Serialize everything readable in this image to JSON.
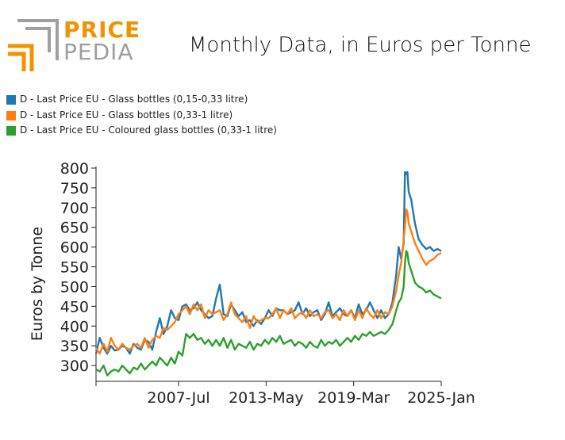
{
  "logo": {
    "word_top": "PRICE",
    "word_bottom": "PEDIA",
    "accent_color": "#f39200",
    "mark_color": "#a0a0a0"
  },
  "chart_data": {
    "type": "line",
    "title": "Monthly Data, in Euros per Tonne",
    "ylabel": "Euros by Tonne",
    "xlabel": "",
    "x_axis_type": "date",
    "x_range": [
      "2002-01",
      "2025-01"
    ],
    "x_ticks": [
      "2007-Jul",
      "2013-May",
      "2019-Mar",
      "2025-Jan"
    ],
    "ylim": [
      260,
      800
    ],
    "y_ticks": [
      300,
      350,
      400,
      450,
      500,
      550,
      600,
      650,
      700,
      750,
      800
    ],
    "grid": false,
    "legend_position": "top-left",
    "series": [
      {
        "name": "D - Last Price EU - Glass bottles (0,15-0,33 litre)",
        "color": "#1f77b4",
        "points": [
          [
            "2002-01",
            330
          ],
          [
            "2002-04",
            370
          ],
          [
            "2002-07",
            345
          ],
          [
            "2002-10",
            330
          ],
          [
            "2003-01",
            350
          ],
          [
            "2003-04",
            338
          ],
          [
            "2003-07",
            340
          ],
          [
            "2003-10",
            350
          ],
          [
            "2004-01",
            345
          ],
          [
            "2004-04",
            330
          ],
          [
            "2004-07",
            355
          ],
          [
            "2004-10",
            345
          ],
          [
            "2005-01",
            340
          ],
          [
            "2005-04",
            365
          ],
          [
            "2005-07",
            360
          ],
          [
            "2005-10",
            340
          ],
          [
            "2006-01",
            385
          ],
          [
            "2006-04",
            420
          ],
          [
            "2006-07",
            380
          ],
          [
            "2006-10",
            400
          ],
          [
            "2007-01",
            440
          ],
          [
            "2007-04",
            420
          ],
          [
            "2007-07",
            415
          ],
          [
            "2007-10",
            450
          ],
          [
            "2008-01",
            455
          ],
          [
            "2008-04",
            440
          ],
          [
            "2008-07",
            445
          ],
          [
            "2008-10",
            460
          ],
          [
            "2009-01",
            440
          ],
          [
            "2009-04",
            430
          ],
          [
            "2009-07",
            420
          ],
          [
            "2009-10",
            425
          ],
          [
            "2010-01",
            470
          ],
          [
            "2010-04",
            505
          ],
          [
            "2010-07",
            430
          ],
          [
            "2010-10",
            425
          ],
          [
            "2011-01",
            455
          ],
          [
            "2011-04",
            440
          ],
          [
            "2011-07",
            425
          ],
          [
            "2011-10",
            435
          ],
          [
            "2012-01",
            410
          ],
          [
            "2012-04",
            415
          ],
          [
            "2012-07",
            400
          ],
          [
            "2012-10",
            415
          ],
          [
            "2013-01",
            405
          ],
          [
            "2013-04",
            420
          ],
          [
            "2013-07",
            440
          ],
          [
            "2013-10",
            425
          ],
          [
            "2014-01",
            445
          ],
          [
            "2014-04",
            440
          ],
          [
            "2014-07",
            440
          ],
          [
            "2014-10",
            430
          ],
          [
            "2015-01",
            435
          ],
          [
            "2015-04",
            440
          ],
          [
            "2015-07",
            460
          ],
          [
            "2015-10",
            430
          ],
          [
            "2016-01",
            445
          ],
          [
            "2016-04",
            425
          ],
          [
            "2016-07",
            435
          ],
          [
            "2016-10",
            440
          ],
          [
            "2017-01",
            415
          ],
          [
            "2017-04",
            430
          ],
          [
            "2017-07",
            460
          ],
          [
            "2017-10",
            425
          ],
          [
            "2018-01",
            435
          ],
          [
            "2018-04",
            445
          ],
          [
            "2018-07",
            430
          ],
          [
            "2018-10",
            425
          ],
          [
            "2019-01",
            440
          ],
          [
            "2019-04",
            420
          ],
          [
            "2019-07",
            455
          ],
          [
            "2019-10",
            430
          ],
          [
            "2020-01",
            440
          ],
          [
            "2020-04",
            460
          ],
          [
            "2020-07",
            440
          ],
          [
            "2020-10",
            420
          ],
          [
            "2021-01",
            440
          ],
          [
            "2021-04",
            420
          ],
          [
            "2021-07",
            430
          ],
          [
            "2021-10",
            460
          ],
          [
            "2022-01",
            530
          ],
          [
            "2022-03",
            600
          ],
          [
            "2022-05",
            570
          ],
          [
            "2022-07",
            610
          ],
          [
            "2022-08",
            790
          ],
          [
            "2022-09",
            785
          ],
          [
            "2022-10",
            790
          ],
          [
            "2022-11",
            740
          ],
          [
            "2023-01",
            720
          ],
          [
            "2023-04",
            660
          ],
          [
            "2023-07",
            620
          ],
          [
            "2023-10",
            605
          ],
          [
            "2024-01",
            595
          ],
          [
            "2024-04",
            600
          ],
          [
            "2024-07",
            590
          ],
          [
            "2024-10",
            595
          ],
          [
            "2025-01",
            590
          ]
        ]
      },
      {
        "name": "D - Last Price EU - Glass bottles (0,33-1 litre)",
        "color": "#ff7f0e",
        "points": [
          [
            "2002-01",
            345
          ],
          [
            "2002-04",
            330
          ],
          [
            "2002-07",
            355
          ],
          [
            "2002-10",
            335
          ],
          [
            "2003-01",
            370
          ],
          [
            "2003-04",
            350
          ],
          [
            "2003-07",
            340
          ],
          [
            "2003-10",
            355
          ],
          [
            "2004-01",
            345
          ],
          [
            "2004-04",
            340
          ],
          [
            "2004-07",
            350
          ],
          [
            "2004-10",
            355
          ],
          [
            "2005-01",
            345
          ],
          [
            "2005-04",
            370
          ],
          [
            "2005-07",
            345
          ],
          [
            "2005-10",
            365
          ],
          [
            "2006-01",
            375
          ],
          [
            "2006-04",
            370
          ],
          [
            "2006-07",
            395
          ],
          [
            "2006-10",
            390
          ],
          [
            "2007-01",
            400
          ],
          [
            "2007-04",
            410
          ],
          [
            "2007-07",
            430
          ],
          [
            "2007-10",
            440
          ],
          [
            "2008-01",
            450
          ],
          [
            "2008-04",
            430
          ],
          [
            "2008-07",
            455
          ],
          [
            "2008-10",
            440
          ],
          [
            "2009-01",
            455
          ],
          [
            "2009-04",
            420
          ],
          [
            "2009-07",
            440
          ],
          [
            "2009-10",
            430
          ],
          [
            "2010-01",
            435
          ],
          [
            "2010-04",
            440
          ],
          [
            "2010-07",
            415
          ],
          [
            "2010-10",
            430
          ],
          [
            "2011-01",
            460
          ],
          [
            "2011-04",
            430
          ],
          [
            "2011-07",
            420
          ],
          [
            "2011-10",
            410
          ],
          [
            "2012-01",
            425
          ],
          [
            "2012-04",
            395
          ],
          [
            "2012-07",
            425
          ],
          [
            "2012-10",
            410
          ],
          [
            "2013-01",
            415
          ],
          [
            "2013-04",
            420
          ],
          [
            "2013-07",
            420
          ],
          [
            "2013-10",
            430
          ],
          [
            "2014-01",
            445
          ],
          [
            "2014-04",
            420
          ],
          [
            "2014-07",
            440
          ],
          [
            "2014-10",
            430
          ],
          [
            "2015-01",
            445
          ],
          [
            "2015-04",
            420
          ],
          [
            "2015-07",
            430
          ],
          [
            "2015-10",
            435
          ],
          [
            "2016-01",
            420
          ],
          [
            "2016-04",
            440
          ],
          [
            "2016-07",
            425
          ],
          [
            "2016-10",
            430
          ],
          [
            "2017-01",
            420
          ],
          [
            "2017-04",
            435
          ],
          [
            "2017-07",
            440
          ],
          [
            "2017-10",
            420
          ],
          [
            "2018-01",
            430
          ],
          [
            "2018-04",
            415
          ],
          [
            "2018-07",
            440
          ],
          [
            "2018-10",
            425
          ],
          [
            "2019-01",
            440
          ],
          [
            "2019-04",
            415
          ],
          [
            "2019-07",
            440
          ],
          [
            "2019-10",
            420
          ],
          [
            "2020-01",
            445
          ],
          [
            "2020-04",
            430
          ],
          [
            "2020-07",
            420
          ],
          [
            "2020-10",
            440
          ],
          [
            "2021-01",
            420
          ],
          [
            "2021-04",
            435
          ],
          [
            "2021-07",
            430
          ],
          [
            "2021-10",
            450
          ],
          [
            "2022-01",
            490
          ],
          [
            "2022-03",
            530
          ],
          [
            "2022-05",
            560
          ],
          [
            "2022-07",
            620
          ],
          [
            "2022-08",
            650
          ],
          [
            "2022-09",
            695
          ],
          [
            "2022-10",
            690
          ],
          [
            "2022-11",
            660
          ],
          [
            "2023-01",
            640
          ],
          [
            "2023-04",
            610
          ],
          [
            "2023-07",
            590
          ],
          [
            "2023-10",
            570
          ],
          [
            "2024-01",
            555
          ],
          [
            "2024-04",
            565
          ],
          [
            "2024-07",
            570
          ],
          [
            "2024-10",
            580
          ],
          [
            "2025-01",
            585
          ]
        ]
      },
      {
        "name": "D - Last Price EU - Coloured glass bottles (0,33-1 litre)",
        "color": "#2ca02c",
        "points": [
          [
            "2002-01",
            290
          ],
          [
            "2002-04",
            285
          ],
          [
            "2002-07",
            300
          ],
          [
            "2002-10",
            275
          ],
          [
            "2003-01",
            285
          ],
          [
            "2003-04",
            290
          ],
          [
            "2003-07",
            285
          ],
          [
            "2003-10",
            300
          ],
          [
            "2004-01",
            290
          ],
          [
            "2004-04",
            280
          ],
          [
            "2004-07",
            295
          ],
          [
            "2004-10",
            290
          ],
          [
            "2005-01",
            305
          ],
          [
            "2005-04",
            290
          ],
          [
            "2005-07",
            300
          ],
          [
            "2005-10",
            310
          ],
          [
            "2006-01",
            300
          ],
          [
            "2006-04",
            320
          ],
          [
            "2006-07",
            310
          ],
          [
            "2006-10",
            300
          ],
          [
            "2007-01",
            320
          ],
          [
            "2007-04",
            305
          ],
          [
            "2007-07",
            335
          ],
          [
            "2007-10",
            325
          ],
          [
            "2008-01",
            380
          ],
          [
            "2008-04",
            370
          ],
          [
            "2008-07",
            380
          ],
          [
            "2008-10",
            365
          ],
          [
            "2009-01",
            370
          ],
          [
            "2009-04",
            355
          ],
          [
            "2009-07",
            365
          ],
          [
            "2009-10",
            350
          ],
          [
            "2010-01",
            365
          ],
          [
            "2010-04",
            350
          ],
          [
            "2010-07",
            370
          ],
          [
            "2010-10",
            345
          ],
          [
            "2011-01",
            365
          ],
          [
            "2011-04",
            340
          ],
          [
            "2011-07",
            355
          ],
          [
            "2011-10",
            350
          ],
          [
            "2012-01",
            345
          ],
          [
            "2012-04",
            360
          ],
          [
            "2012-07",
            340
          ],
          [
            "2012-10",
            355
          ],
          [
            "2013-01",
            350
          ],
          [
            "2013-04",
            365
          ],
          [
            "2013-07",
            355
          ],
          [
            "2013-10",
            370
          ],
          [
            "2014-01",
            360
          ],
          [
            "2014-04",
            375
          ],
          [
            "2014-07",
            355
          ],
          [
            "2014-10",
            360
          ],
          [
            "2015-01",
            365
          ],
          [
            "2015-04",
            350
          ],
          [
            "2015-07",
            360
          ],
          [
            "2015-10",
            355
          ],
          [
            "2016-01",
            345
          ],
          [
            "2016-04",
            360
          ],
          [
            "2016-07",
            350
          ],
          [
            "2016-10",
            345
          ],
          [
            "2017-01",
            365
          ],
          [
            "2017-04",
            350
          ],
          [
            "2017-07",
            360
          ],
          [
            "2017-10",
            355
          ],
          [
            "2018-01",
            365
          ],
          [
            "2018-04",
            350
          ],
          [
            "2018-07",
            360
          ],
          [
            "2018-10",
            370
          ],
          [
            "2019-01",
            360
          ],
          [
            "2019-04",
            375
          ],
          [
            "2019-07",
            365
          ],
          [
            "2019-10",
            380
          ],
          [
            "2020-01",
            375
          ],
          [
            "2020-04",
            385
          ],
          [
            "2020-07",
            375
          ],
          [
            "2020-10",
            380
          ],
          [
            "2021-01",
            385
          ],
          [
            "2021-04",
            380
          ],
          [
            "2021-07",
            390
          ],
          [
            "2021-10",
            405
          ],
          [
            "2022-01",
            440
          ],
          [
            "2022-03",
            460
          ],
          [
            "2022-05",
            470
          ],
          [
            "2022-07",
            500
          ],
          [
            "2022-08",
            560
          ],
          [
            "2022-09",
            590
          ],
          [
            "2022-10",
            585
          ],
          [
            "2022-11",
            560
          ],
          [
            "2023-01",
            540
          ],
          [
            "2023-04",
            510
          ],
          [
            "2023-07",
            500
          ],
          [
            "2023-10",
            495
          ],
          [
            "2024-01",
            485
          ],
          [
            "2024-04",
            490
          ],
          [
            "2024-07",
            480
          ],
          [
            "2024-10",
            475
          ],
          [
            "2025-01",
            470
          ]
        ]
      }
    ]
  }
}
